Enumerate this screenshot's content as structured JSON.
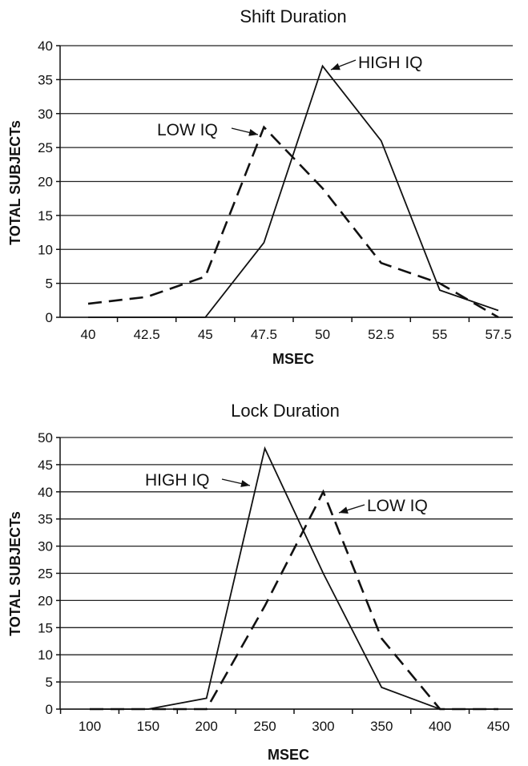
{
  "chart_data": [
    {
      "type": "line",
      "title": "Shift Duration",
      "xlabel": "MSEC",
      "ylabel": "TOTAL SUBJECTs",
      "categories": [
        "40",
        "42.5",
        "45",
        "47.5",
        "50",
        "52.5",
        "55",
        "57.5"
      ],
      "x": [
        40,
        42.5,
        45,
        47.5,
        50,
        52.5,
        55,
        57.5
      ],
      "ylim": [
        0,
        40
      ],
      "yticks": [
        "0",
        "5",
        "10",
        "15",
        "20",
        "25",
        "30",
        "35",
        "40"
      ],
      "grid": "horizontal",
      "series": [
        {
          "name": "HIGH IQ",
          "style": "solid",
          "color": "#111111",
          "values": [
            0,
            0,
            0,
            11,
            37,
            26,
            4,
            1
          ]
        },
        {
          "name": "LOW IQ",
          "style": "dashed",
          "color": "#111111",
          "values": [
            2,
            3,
            6,
            28,
            19,
            8,
            5,
            0
          ]
        }
      ],
      "annotations": [
        {
          "text": "HIGH IQ",
          "series": "HIGH IQ",
          "points_to_x": 50,
          "points_to_y": 37
        },
        {
          "text": "LOW IQ",
          "series": "LOW IQ",
          "points_to_x": 47.5,
          "points_to_y": 28
        }
      ]
    },
    {
      "type": "line",
      "title": "Lock Duration",
      "xlabel": "MSEC",
      "ylabel": "TOTAL SUBJECTs",
      "categories": [
        "100",
        "150",
        "200",
        "250",
        "300",
        "350",
        "400",
        "450"
      ],
      "x": [
        100,
        150,
        200,
        250,
        300,
        350,
        400,
        450
      ],
      "ylim": [
        0,
        50
      ],
      "yticks": [
        "0",
        "5",
        "10",
        "15",
        "20",
        "25",
        "30",
        "35",
        "40",
        "45",
        "50"
      ],
      "grid": "horizontal",
      "series": [
        {
          "name": "HIGH IQ",
          "style": "solid",
          "color": "#111111",
          "values": [
            0,
            0,
            2,
            48,
            25,
            4,
            0,
            0
          ]
        },
        {
          "name": "LOW IQ",
          "style": "dashed",
          "color": "#111111",
          "values": [
            0,
            0,
            0,
            19,
            40,
            13,
            0,
            0
          ]
        }
      ],
      "annotations": [
        {
          "text": "HIGH IQ",
          "series": "HIGH IQ",
          "points_to_x": 250,
          "points_to_y": 45
        },
        {
          "text": "LOW IQ",
          "series": "LOW IQ",
          "points_to_x": 300,
          "points_to_y": 40
        }
      ]
    }
  ]
}
